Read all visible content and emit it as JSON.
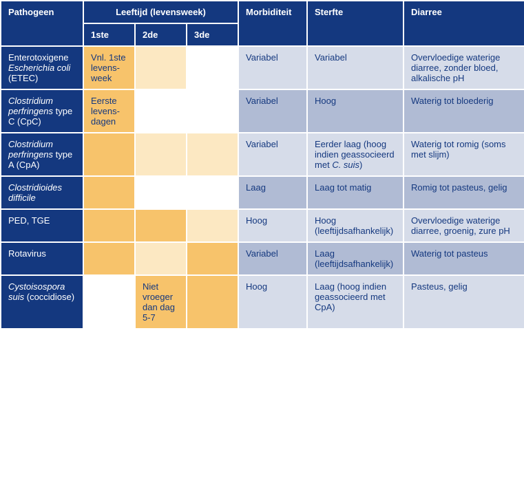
{
  "headers": {
    "pathogen": "Pathogeen",
    "age": "Leeftijd (levensweek)",
    "week1": "1ste",
    "week2": "2de",
    "week3": "3de",
    "morbidity": "Morbiditeit",
    "mortality": "Sterfte",
    "diarrhea": "Diarree"
  },
  "rows": [
    {
      "pathogen_html": "Enterotoxigene <span class=\"italic\">Escherichia coli</span> (ETEC)",
      "w1": "Vnl. 1ste levens-week",
      "w1_class": "orange-dark",
      "w2": "",
      "w2_class": "orange-light",
      "w3": "",
      "w3_class": "white-cell",
      "morbidity": "Variabel",
      "mortality_html": "Variabel",
      "diarrhea": "Overvloedige waterige diarree, zonder bloed, alkalische pH",
      "clin_class": "blue-light"
    },
    {
      "pathogen_html": "<span class=\"italic\">Clostridium perfringens</span> type C (CpC)",
      "w1": "Eerste levens-dagen",
      "w1_class": "orange-dark",
      "w2": "",
      "w2_class": "white-cell",
      "w3": "",
      "w3_class": "white-cell",
      "morbidity": "Variabel",
      "mortality_html": "Hoog",
      "diarrhea": "Waterig tot bloederig",
      "clin_class": "blue-dark"
    },
    {
      "pathogen_html": "<span class=\"italic\">Clostridium perfringens</span> type A (CpA)",
      "w1": "",
      "w1_class": "orange-dark",
      "w2": "",
      "w2_class": "orange-light",
      "w3": "",
      "w3_class": "orange-light",
      "morbidity": "Variabel",
      "mortality_html": "Eerder laag (hoog indien geassocieerd met <span class=\"italic\">C. suis</span>)",
      "diarrhea": "Waterig tot romig (soms met slijm)",
      "clin_class": "blue-light"
    },
    {
      "pathogen_html": "<span class=\"italic\">Clostridioides difficile</span>",
      "w1": "",
      "w1_class": "orange-dark",
      "w2": "",
      "w2_class": "white-cell",
      "w3": "",
      "w3_class": "white-cell",
      "morbidity": "Laag",
      "mortality_html": "Laag tot matig",
      "diarrhea": "Romig tot pasteus, gelig",
      "clin_class": "blue-dark"
    },
    {
      "pathogen_html": "PED, TGE",
      "w1": "",
      "w1_class": "orange-dark",
      "w2": "",
      "w2_class": "orange-dark",
      "w3": "",
      "w3_class": "orange-light",
      "morbidity": "Hoog",
      "mortality_html": "Hoog (leeftijdsafhankelijk)",
      "diarrhea": "Overvloedige waterige diarree, groenig, zure pH",
      "clin_class": "blue-light"
    },
    {
      "pathogen_html": "Rotavirus",
      "w1": "",
      "w1_class": "orange-dark",
      "w2": "",
      "w2_class": "orange-light",
      "w3": "",
      "w3_class": "orange-dark",
      "morbidity": "Variabel",
      "mortality_html": "Laag (leeftijdsafhankelijk)",
      "diarrhea": "Waterig tot pasteus",
      "clin_class": "blue-dark"
    },
    {
      "pathogen_html": "<span class=\"italic\">Cystoisospora suis</span> (coccidiose)",
      "w1": "",
      "w1_class": "white-cell",
      "w2": "Niet vroeger dan dag 5-7",
      "w2_class": "orange-dark",
      "w3": "",
      "w3_class": "orange-dark",
      "morbidity": "Hoog",
      "mortality_html": "Laag (hoog indien geassocieerd met CpA)",
      "diarrhea": "Pasteus, gelig",
      "clin_class": "blue-light"
    }
  ]
}
